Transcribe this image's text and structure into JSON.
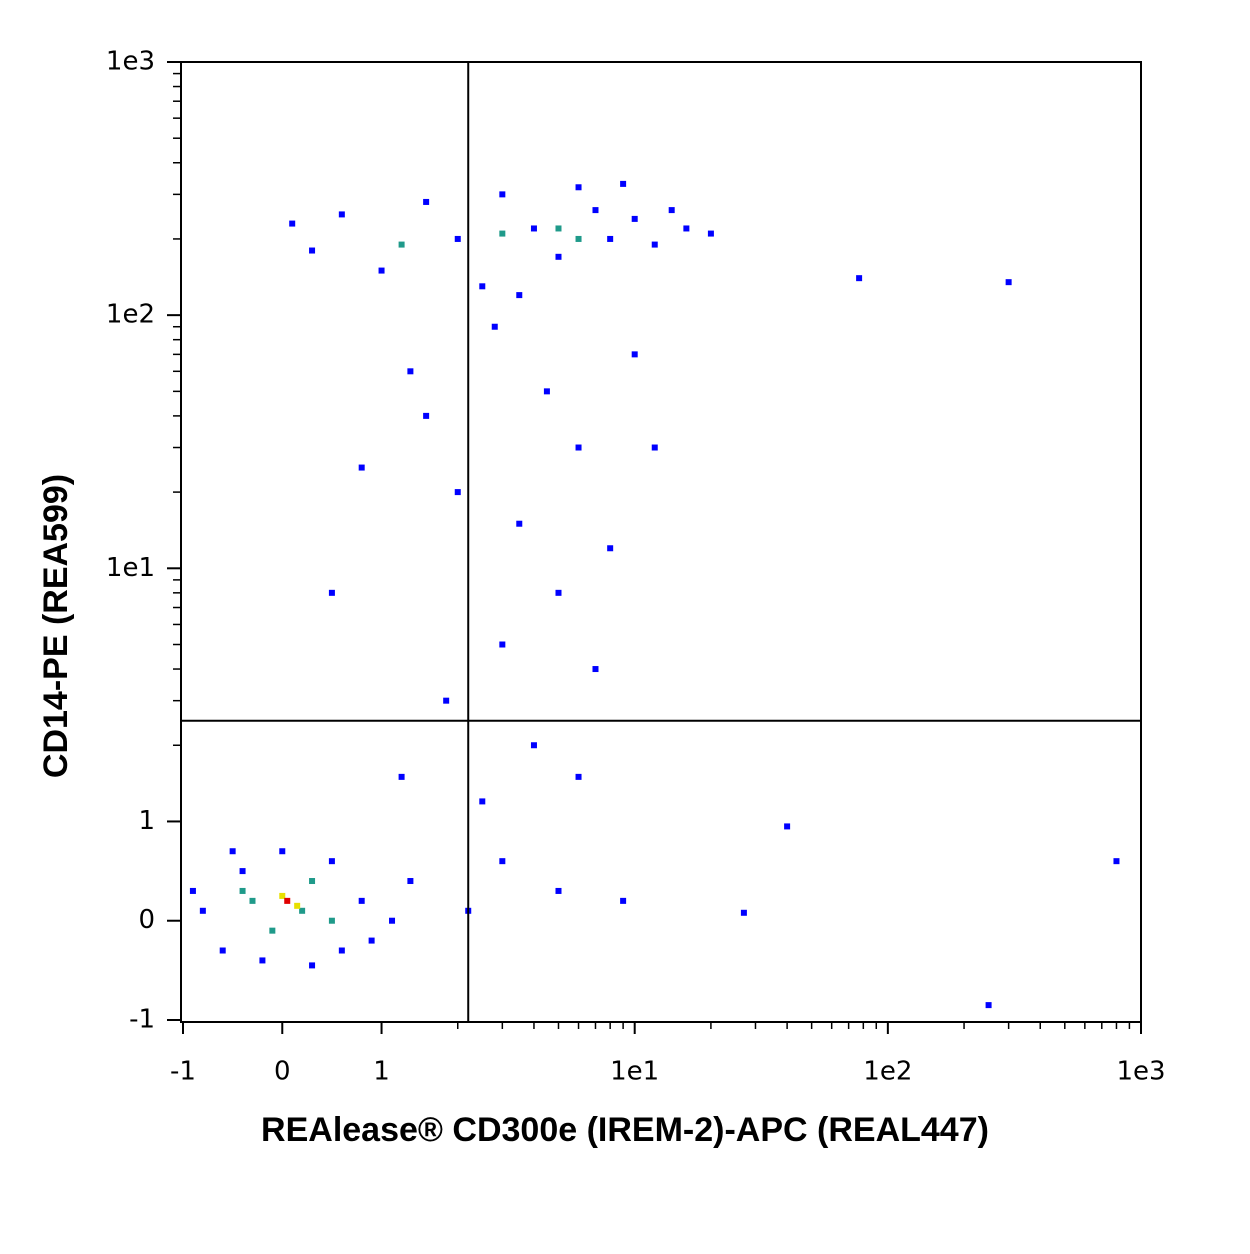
{
  "chart_data": {
    "type": "scatter",
    "x_label": "REAlease® CD300e (IREM-2)-APC (REAL447)",
    "y_label": "CD14-PE (REA599)",
    "scale": "biexponential",
    "xlim": [
      -1,
      1000
    ],
    "ylim": [
      -1,
      1000
    ],
    "xticks": [
      -1,
      0,
      1,
      {
        "value": 10,
        "label": "1e1"
      },
      {
        "value": 100,
        "label": "1e2"
      },
      {
        "value": 1000,
        "label": "1e3"
      }
    ],
    "yticks": [
      -1,
      0,
      1,
      {
        "value": 10,
        "label": "1e1"
      },
      {
        "value": 100,
        "label": "1e2"
      },
      {
        "value": 1000,
        "label": "1e3"
      }
    ],
    "minor_ticks": [
      2,
      3,
      4,
      5,
      6,
      7,
      8,
      9,
      20,
      30,
      40,
      50,
      60,
      70,
      80,
      90,
      200,
      300,
      400,
      500,
      600,
      700,
      800,
      900
    ],
    "gate": {
      "x": 2.2,
      "y": 2.5
    },
    "series": [
      {
        "color": "#0000ff",
        "x": [
          -0.8,
          -0.6,
          -0.4,
          -0.2,
          0,
          0.3,
          0.5,
          0.8,
          1.1,
          -0.9,
          0.9,
          -0.5,
          0.6,
          1.3,
          1.2,
          1.8,
          2.5,
          3,
          4,
          5,
          3.5,
          2,
          6,
          4.5,
          1.5,
          8,
          7,
          3,
          5,
          2.2,
          10,
          0.8,
          0.5,
          1.3,
          6,
          9,
          12,
          2.8,
          0.3,
          0.6,
          1,
          1.5,
          2,
          2.5,
          3,
          4,
          5,
          6,
          7,
          8,
          10,
          12,
          14,
          16,
          0.1,
          20,
          9,
          3.5,
          77,
          300,
          40,
          800,
          250,
          27
        ],
        "y": [
          0.1,
          -0.3,
          0.5,
          -0.4,
          0.7,
          -0.45,
          0.6,
          0.2,
          0,
          0.3,
          -0.2,
          0.7,
          -0.3,
          0.4,
          1.5,
          3,
          1.2,
          5,
          2,
          8,
          15,
          20,
          30,
          50,
          40,
          12,
          4,
          0.6,
          0.3,
          0.1,
          70,
          25,
          8,
          60,
          1.5,
          0.2,
          30,
          90,
          180,
          250,
          150,
          280,
          200,
          130,
          300,
          220,
          170,
          320,
          260,
          200,
          240,
          190,
          260,
          220,
          230,
          210,
          330,
          120,
          140,
          135,
          0.95,
          0.6,
          -0.85,
          0.08
        ]
      },
      {
        "color": "#1f9a8a",
        "x": [
          5,
          3,
          1.2,
          6,
          -0.3,
          0.3,
          0.5,
          -0.1,
          0.2,
          -0.4
        ],
        "y": [
          220,
          210,
          190,
          200,
          0.2,
          0.4,
          0,
          -0.1,
          0.1,
          0.3
        ]
      },
      {
        "color": "#e8e000",
        "x": [
          0,
          0.15
        ],
        "y": [
          0.25,
          0.15
        ]
      },
      {
        "color": "#e00000",
        "x": [
          0.05
        ],
        "y": [
          0.2
        ]
      }
    ]
  }
}
